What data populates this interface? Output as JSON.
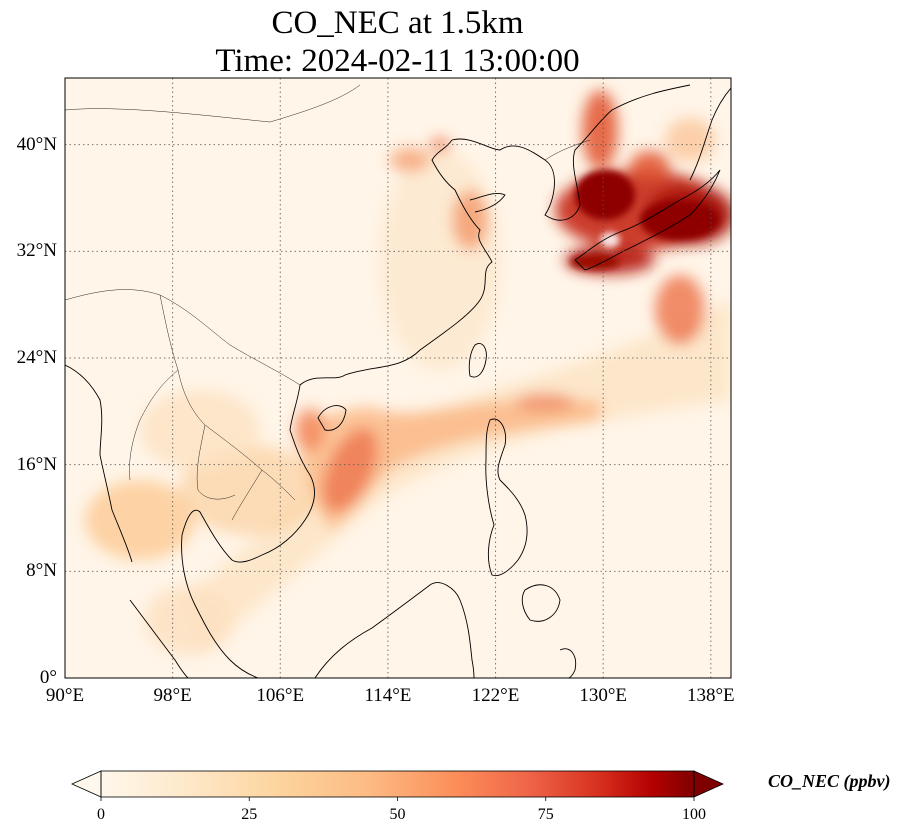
{
  "map": {
    "title_line1": "CO_NEC at 1.5km",
    "title_line2": "Time: 2024-02-11 13:00:00",
    "variable": "CO_NEC",
    "level": "1.5km",
    "time": "2024-02-11 13:00:00",
    "extent": {
      "lon_min": 90,
      "lon_max": 139.5,
      "lat_min": 0,
      "lat_max": 45
    },
    "lat_ticks": [
      {
        "value": 0,
        "label": "0°"
      },
      {
        "value": 8,
        "label": "8°N"
      },
      {
        "value": 16,
        "label": "16°N"
      },
      {
        "value": 24,
        "label": "24°N"
      },
      {
        "value": 32,
        "label": "32°N"
      },
      {
        "value": 40,
        "label": "40°N"
      }
    ],
    "lon_ticks": [
      {
        "value": 90,
        "label": "90°E"
      },
      {
        "value": 98,
        "label": "98°E"
      },
      {
        "value": 106,
        "label": "106°E"
      },
      {
        "value": 114,
        "label": "114°E"
      },
      {
        "value": 122,
        "label": "122°E"
      },
      {
        "value": 130,
        "label": "130°E"
      },
      {
        "value": 138,
        "label": "138°E"
      }
    ],
    "gridlines": true,
    "colormap": "OrRd"
  },
  "colorbar": {
    "label": "CO_NEC (ppbv)",
    "min": 0,
    "max": 100,
    "extend": "both",
    "orientation": "horizontal",
    "ticks": [
      {
        "value": 0,
        "label": "0"
      },
      {
        "value": 25,
        "label": "25"
      },
      {
        "value": 50,
        "label": "50"
      },
      {
        "value": 75,
        "label": "75"
      },
      {
        "value": 100,
        "label": "100"
      }
    ]
  }
}
